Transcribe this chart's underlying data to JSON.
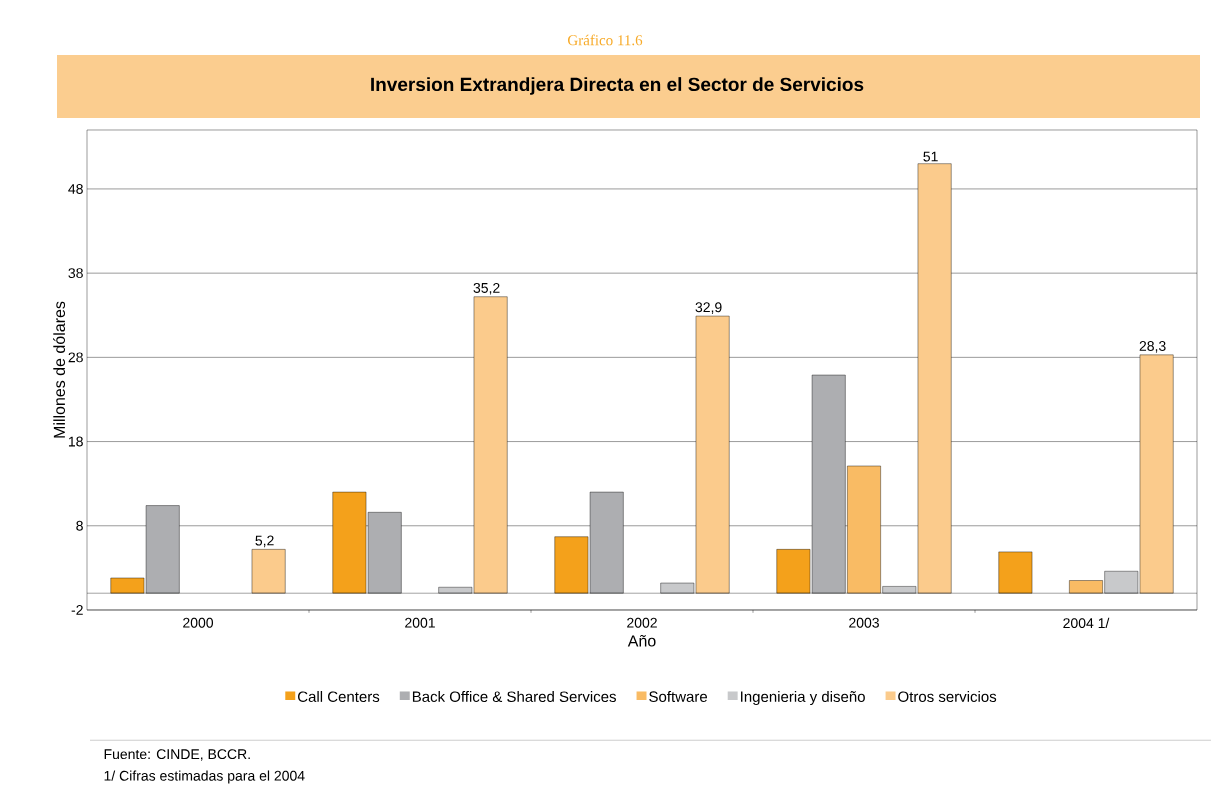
{
  "chart_data": {
    "type": "bar",
    "subtitle": "Gráfico 11.6",
    "title": "Inversion Extrandjera Directa en el Sector de Servicios",
    "xlabel": "Año",
    "ylabel": "Millones de dólares",
    "categories": [
      "2000",
      "2001",
      "2002",
      "2003",
      "2004 1/"
    ],
    "series": [
      {
        "name": "Call Centers",
        "color": "#f4a11b",
        "values": [
          1.8,
          12.0,
          6.7,
          5.2,
          4.9
        ]
      },
      {
        "name": "Back Office &  Shared Services",
        "color": "#adaeb1",
        "values": [
          10.4,
          9.6,
          12.0,
          25.9,
          null
        ]
      },
      {
        "name": "Software",
        "color": "#f9bb64",
        "values": [
          null,
          null,
          null,
          15.1,
          1.5
        ]
      },
      {
        "name": "Ingenieria y diseño",
        "color": "#c8c9cb",
        "values": [
          null,
          0.7,
          1.2,
          0.8,
          2.6
        ]
      },
      {
        "name": "Otros servicios",
        "color": "#fbcb8c",
        "values": [
          5.2,
          35.2,
          32.9,
          51,
          28.3
        ],
        "value_labels": [
          "5,2",
          "35,2",
          "32,9",
          "51",
          "28,3"
        ]
      }
    ],
    "ylim": [
      -2,
      55
    ],
    "yticks": [
      -2,
      8,
      18,
      28,
      38,
      48
    ],
    "grid": "y",
    "legend": "bottom",
    "annotations": [
      "Fuente: CINDE, BCCR.",
      "1/ Cifras estimadas para el 2004"
    ]
  }
}
